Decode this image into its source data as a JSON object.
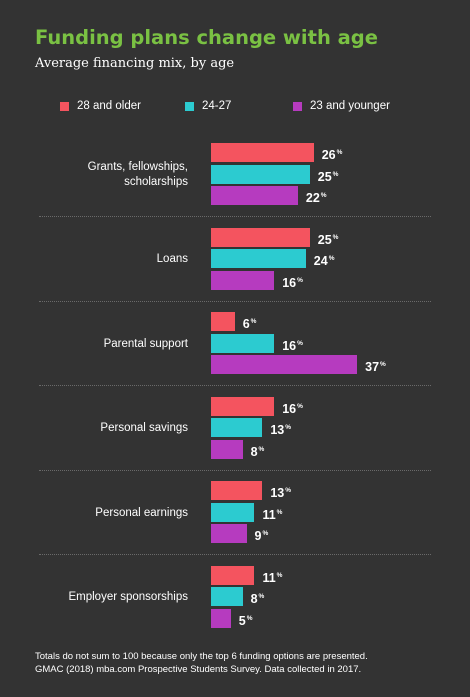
{
  "title": "Funding plans change with age",
  "subtitle": "Average financing mix, by age",
  "legend": [
    {
      "name": "28 and older",
      "color": "#f4545f"
    },
    {
      "name": "24-27",
      "color": "#2ccbd0"
    },
    {
      "name": "23 and younger",
      "color": "#b63bbf"
    }
  ],
  "chart_data": {
    "type": "bar",
    "orientation": "horizontal",
    "categories": [
      "Grants, fellowships,\nscholarships",
      "Loans",
      "Parental support",
      "Personal savings",
      "Personal earnings",
      "Employer sponsorships"
    ],
    "series": [
      {
        "name": "28 and older",
        "color": "#f4545f",
        "values": [
          26,
          25,
          6,
          16,
          13,
          11
        ]
      },
      {
        "name": "24-27",
        "color": "#2ccbd0",
        "values": [
          25,
          24,
          16,
          13,
          11,
          8
        ]
      },
      {
        "name": "23 and younger",
        "color": "#b63bbf",
        "values": [
          22,
          16,
          37,
          8,
          9,
          5
        ]
      }
    ],
    "value_suffix": "%",
    "legend_position": "top",
    "grid": false
  },
  "footnotes": {
    "note": "Totals do not sum to 100 because only the top 6 funding options are presented.",
    "source": "GMAC (2018) mba.com Prospective Students Survey. Data collected in 2017."
  }
}
